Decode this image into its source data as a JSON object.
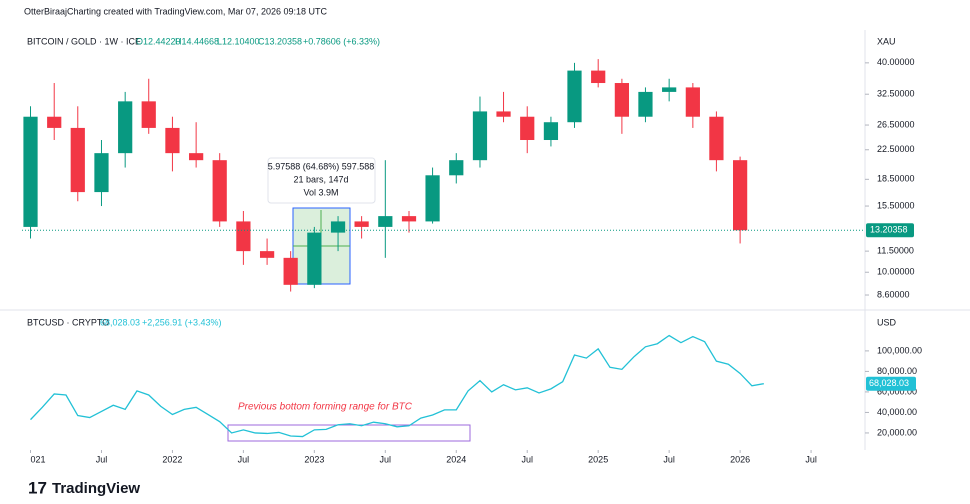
{
  "header": "OtterBiraajCharting created with TradingView.com, Mar 07, 2026 09:18 UTC",
  "footer": "TradingView",
  "chart_data": [
    {
      "type": "candlestick",
      "log": true,
      "grid": false,
      "legend": {
        "symbol": "BITCOIN / GOLD · 1W · ICE",
        "o": "O12.44220",
        "h": "H14.44668",
        "l": "L12.10400",
        "c": "C13.20358",
        "change": "+0.78606 (+6.33%)"
      },
      "axis_unit": "XAU",
      "up_color": "#089981",
      "down_color": "#f23645",
      "xlim": [
        2020.94,
        2026.88
      ],
      "ylim": [
        8.05,
        48.1
      ],
      "yticks": [
        {
          "value": 40,
          "label": "40.00000"
        },
        {
          "value": 32.5,
          "label": "32.50000"
        },
        {
          "value": 26.5,
          "label": "26.50000"
        },
        {
          "value": 22.5,
          "label": "22.50000"
        },
        {
          "value": 18.5,
          "label": "18.50000"
        },
        {
          "value": 15.5,
          "label": "15.50000"
        },
        {
          "value": 11.5,
          "label": "11.50000"
        },
        {
          "value": 10,
          "label": "10.00000"
        },
        {
          "value": 8.6,
          "label": "8.60000"
        }
      ],
      "x": [
        2021,
        2021.167,
        2021.333,
        2021.5,
        2021.667,
        2021.833,
        2022,
        2022.167,
        2022.333,
        2022.5,
        2022.667,
        2022.833,
        2023,
        2023.167,
        2023.333,
        2023.5,
        2023.667,
        2023.833,
        2024,
        2024.167,
        2024.333,
        2024.5,
        2024.667,
        2024.833,
        2025,
        2025.167,
        2025.333,
        2025.5,
        2025.667,
        2025.833,
        2026
      ],
      "open": [
        13.5,
        28,
        26,
        17,
        22,
        31,
        26,
        22,
        21,
        14,
        11.5,
        11,
        9.2,
        13,
        14,
        13.5,
        14.5,
        14,
        19,
        21,
        29,
        28,
        24,
        27,
        38,
        35,
        28,
        33,
        34,
        28,
        21
      ],
      "high": [
        30,
        35,
        30,
        24,
        33,
        36,
        28,
        27,
        22,
        15,
        12.5,
        11.5,
        13.5,
        14.5,
        14.5,
        21,
        15,
        20,
        22,
        32,
        33,
        30,
        28,
        40,
        41,
        36,
        34,
        36,
        35,
        29,
        21.5
      ],
      "low": [
        12.5,
        24,
        16,
        15.5,
        20,
        25,
        19.5,
        20,
        13.5,
        10.5,
        10.5,
        8.8,
        9,
        11.5,
        12.5,
        11,
        13,
        13.8,
        18,
        20,
        27,
        22,
        23,
        26,
        34,
        25,
        27,
        31,
        26,
        19.5,
        12.1
      ],
      "close": [
        28,
        26,
        17,
        22,
        31,
        26,
        22,
        21,
        14,
        11.5,
        11,
        9.2,
        13,
        14,
        13.5,
        14.5,
        14,
        19,
        21,
        29,
        28,
        24,
        27,
        38,
        35,
        28,
        33,
        34,
        28,
        21,
        13.20358
      ],
      "last_label": "13.20358",
      "measure": {
        "line1": "5.97588 (64.68%) 597.588",
        "line2": "21 bars, 147d",
        "line3": "Vol 3.9M"
      }
    },
    {
      "type": "line",
      "grid": false,
      "legend": {
        "price": "68,028.03",
        "change": "+2,256.91 (+3.43%)"
      },
      "axis_unit": "USD",
      "xlim": [
        2020.94,
        2026.88
      ],
      "ylim": [
        -1500,
        135000
      ],
      "yticks": [
        {
          "value": 100000,
          "label": "100,000.00"
        },
        {
          "value": 80000,
          "label": "80,000.00"
        },
        {
          "value": 60000,
          "label": "60,000.00"
        },
        {
          "value": 40000,
          "label": "40,000.00"
        },
        {
          "value": 20000,
          "label": "20,000.00"
        }
      ],
      "xticks": [
        {
          "value": 2021,
          "label": "021"
        },
        {
          "value": 2021.5,
          "label": "Jul"
        },
        2022,
        {
          "value": 2022.5,
          "label": "Jul"
        },
        2023,
        {
          "value": 2023.5,
          "label": "Jul"
        },
        2024,
        {
          "value": 2024.5,
          "label": "Jul"
        },
        2025,
        {
          "value": 2025.5,
          "label": "Jul"
        },
        2026,
        {
          "value": 2026.5,
          "label": "Jul"
        }
      ],
      "x": [
        2021,
        2021.083,
        2021.167,
        2021.25,
        2021.333,
        2021.417,
        2021.5,
        2021.583,
        2021.667,
        2021.75,
        2021.833,
        2021.917,
        2022,
        2022.083,
        2022.167,
        2022.25,
        2022.333,
        2022.417,
        2022.5,
        2022.583,
        2022.667,
        2022.75,
        2022.833,
        2022.917,
        2023,
        2023.083,
        2023.167,
        2023.25,
        2023.333,
        2023.417,
        2023.5,
        2023.583,
        2023.667,
        2023.75,
        2023.833,
        2023.917,
        2024,
        2024.083,
        2024.167,
        2024.25,
        2024.333,
        2024.417,
        2024.5,
        2024.583,
        2024.667,
        2024.75,
        2024.833,
        2024.917,
        2025,
        2025.083,
        2025.167,
        2025.25,
        2025.333,
        2025.417,
        2025.5,
        2025.583,
        2025.667,
        2025.75,
        2025.833,
        2025.917,
        2026,
        2026.083,
        2026.167
      ],
      "series": [
        {
          "name": "BTCUSD · CRYPTO",
          "color": "#22c1d6",
          "values": [
            33000,
            45000,
            58000,
            57000,
            37000,
            35000,
            41000,
            47000,
            43000,
            61000,
            57000,
            46000,
            38000,
            43000,
            45000,
            38000,
            31000,
            20000,
            23000,
            20000,
            19500,
            20500,
            17000,
            16500,
            23000,
            23500,
            28000,
            29000,
            27000,
            30500,
            29000,
            26000,
            27000,
            34500,
            37500,
            42500,
            42500,
            61000,
            71000,
            60000,
            67000,
            62000,
            64000,
            59000,
            63000,
            70000,
            96000,
            93000,
            102000,
            84000,
            82000,
            94000,
            104000,
            107000,
            115000,
            108000,
            114000,
            109000,
            90000,
            87000,
            78000,
            66000,
            68028.03
          ]
        }
      ],
      "annotation": "Previous bottom forming range for BTC"
    }
  ]
}
